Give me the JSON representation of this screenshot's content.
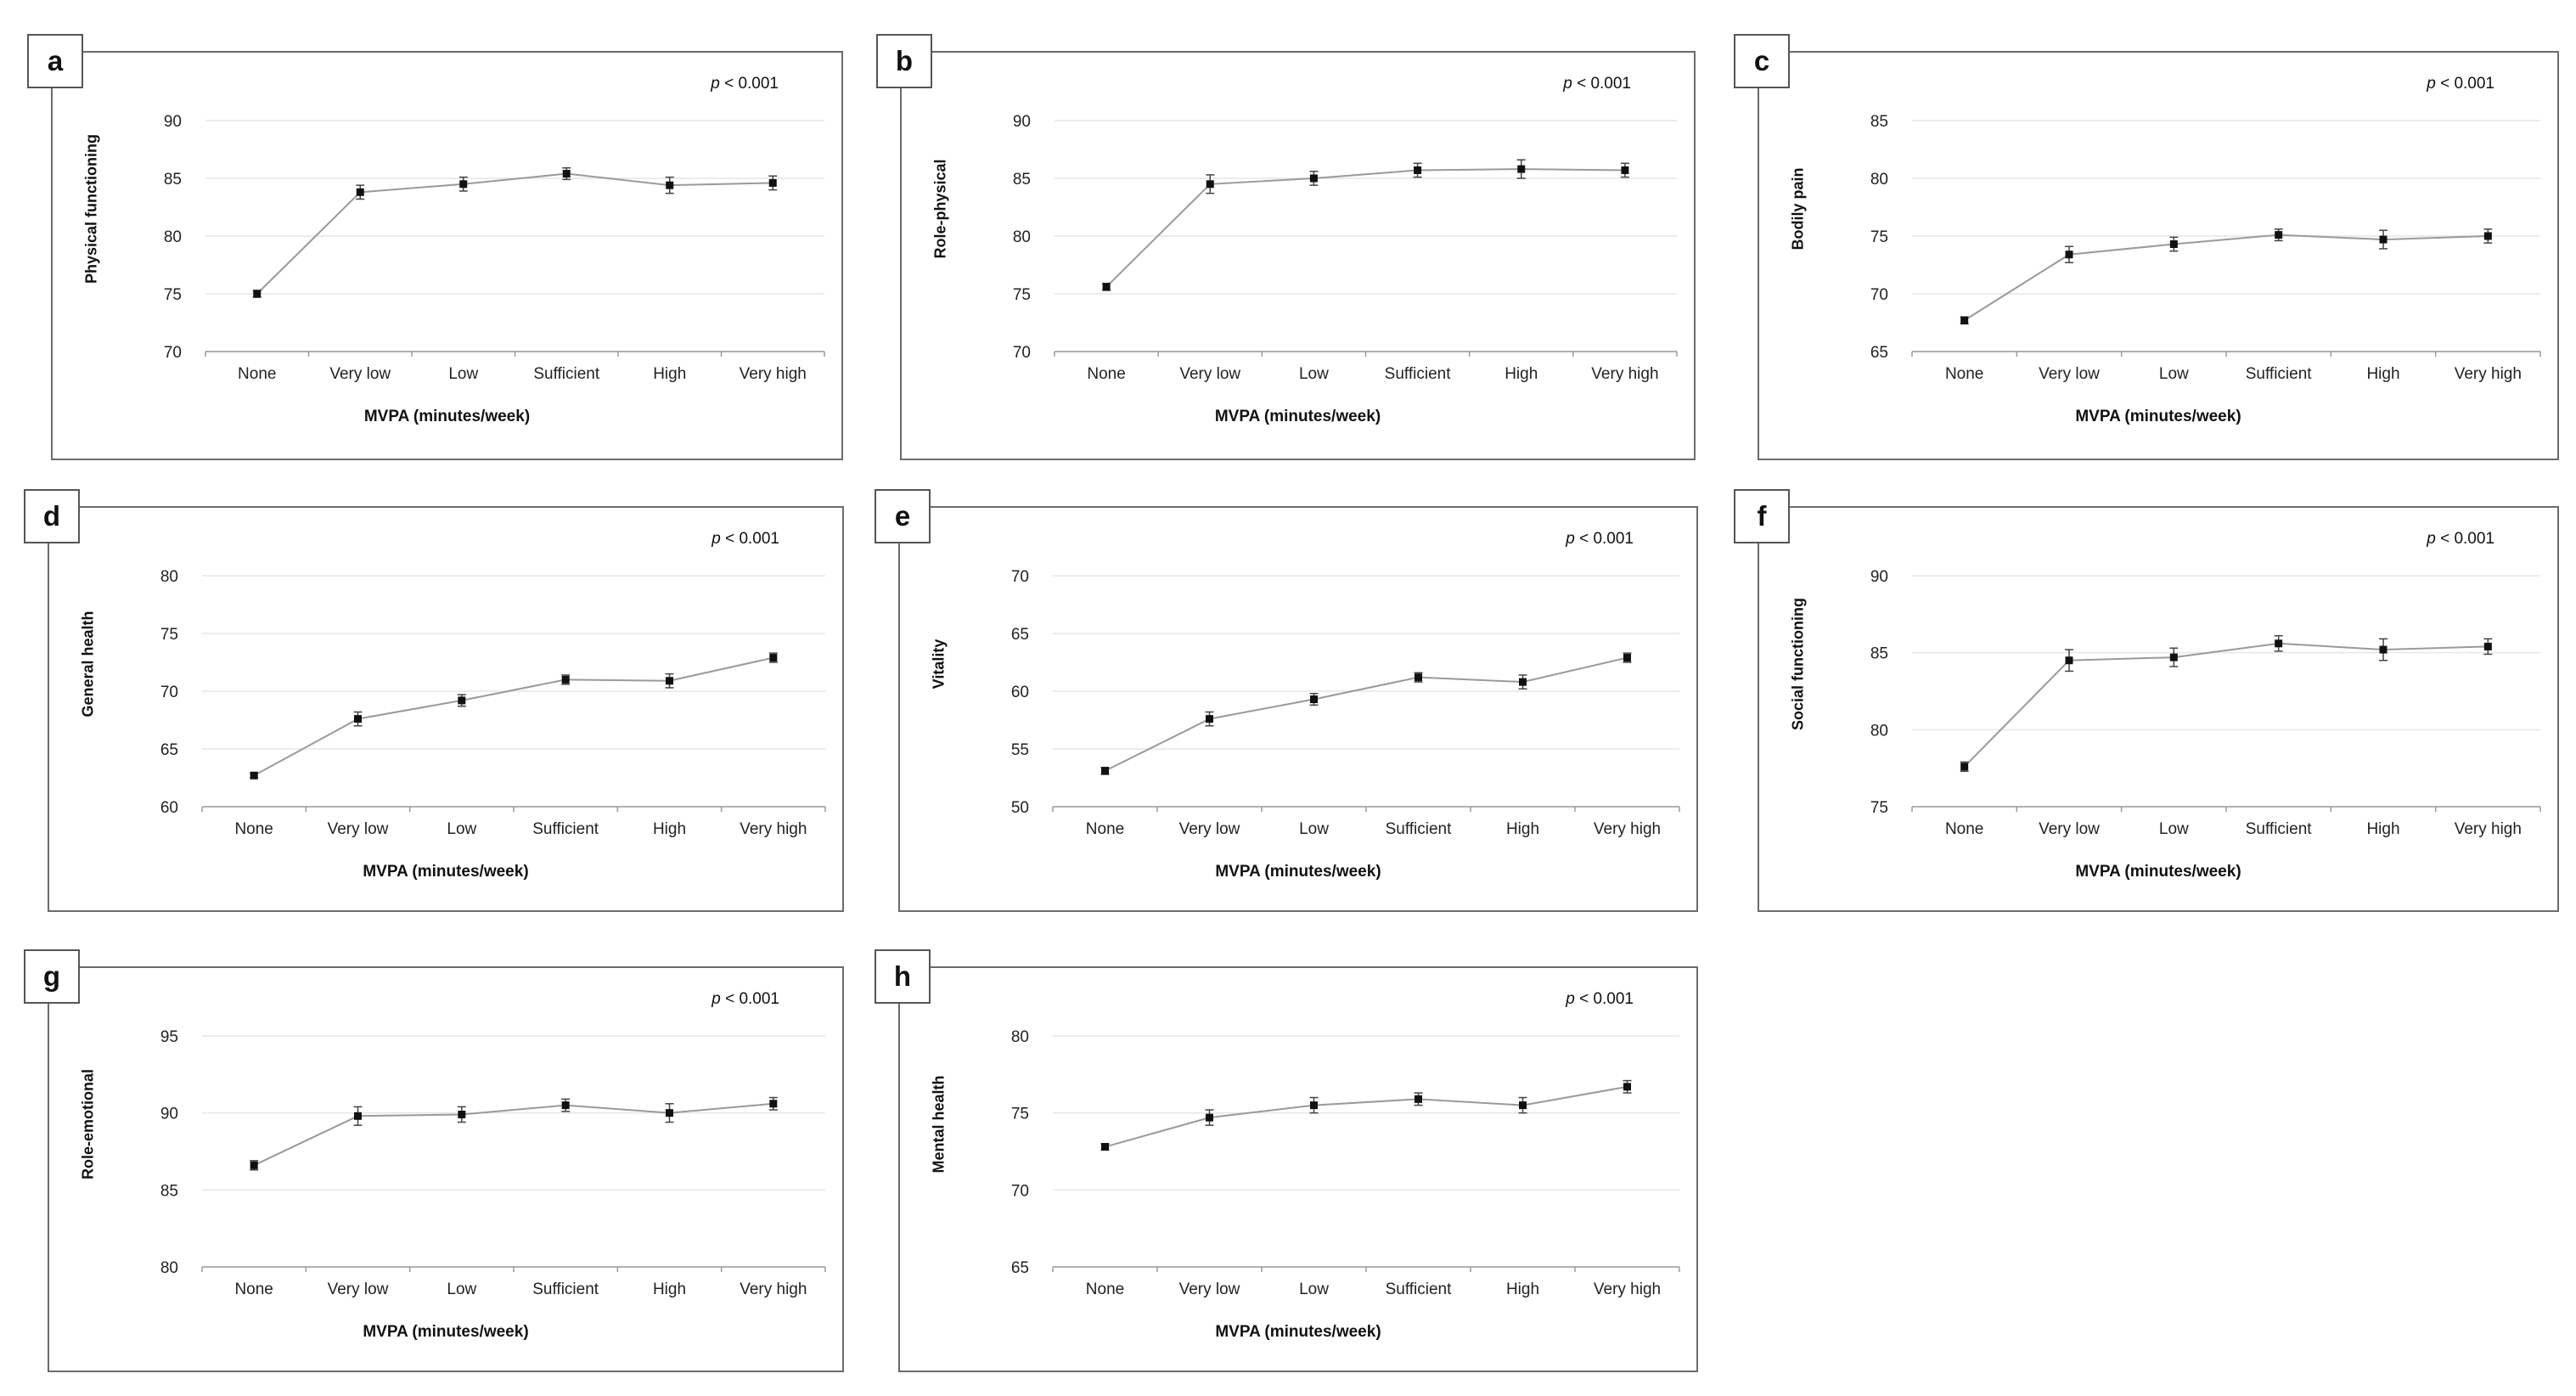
{
  "colors": {
    "line": "#9a9a9a",
    "marker": "#111111",
    "grid": "#e6e6e6",
    "axis": "#9a9a9a"
  },
  "chart_data": [
    {
      "panel": "a",
      "type": "line",
      "title": "",
      "pvalue": "p < 0.001",
      "pvalue_italic": "p",
      "pvalue_rest": " < 0.001",
      "xlabel": "MVPA (minutes/week)",
      "ylabel": "Physical functioning",
      "categories": [
        "None",
        "Very low",
        "Low",
        "Sufficient",
        "High",
        "Very high"
      ],
      "values": [
        75.0,
        83.8,
        84.5,
        85.4,
        84.4,
        84.6
      ],
      "errors": [
        0.3,
        0.6,
        0.6,
        0.5,
        0.7,
        0.6
      ],
      "ylim": [
        70,
        90
      ],
      "yticks": [
        70,
        75,
        80,
        85,
        90
      ]
    },
    {
      "panel": "b",
      "type": "line",
      "title": "",
      "pvalue": "p < 0.001",
      "pvalue_italic": "p",
      "pvalue_rest": " < 0.001",
      "xlabel": "MVPA (minutes/week)",
      "ylabel": "Role-physical",
      "categories": [
        "None",
        "Very low",
        "Low",
        "Sufficient",
        "High",
        "Very high"
      ],
      "values": [
        75.6,
        84.5,
        85.0,
        85.7,
        85.8,
        85.7
      ],
      "errors": [
        0.3,
        0.8,
        0.6,
        0.6,
        0.8,
        0.6
      ],
      "ylim": [
        70,
        90
      ],
      "yticks": [
        70,
        75,
        80,
        85,
        90
      ]
    },
    {
      "panel": "c",
      "type": "line",
      "title": "",
      "pvalue": "p < 0.001",
      "pvalue_italic": "p",
      "pvalue_rest": " < 0.001",
      "xlabel": "MVPA (minutes/week)",
      "ylabel": "Bodily pain",
      "categories": [
        "None",
        "Very low",
        "Low",
        "Sufficient",
        "High",
        "Very high"
      ],
      "values": [
        67.7,
        73.4,
        74.3,
        75.1,
        74.7,
        75.0
      ],
      "errors": [
        0.3,
        0.7,
        0.6,
        0.5,
        0.8,
        0.6
      ],
      "ylim": [
        65,
        85
      ],
      "yticks": [
        65,
        70,
        75,
        80,
        85
      ]
    },
    {
      "panel": "d",
      "type": "line",
      "title": "",
      "pvalue": "p < 0.001",
      "pvalue_italic": "p",
      "pvalue_rest": " < 0.001",
      "xlabel": "MVPA (minutes/week)",
      "ylabel": "General health",
      "categories": [
        "None",
        "Very low",
        "Low",
        "Sufficient",
        "High",
        "Very high"
      ],
      "values": [
        62.7,
        67.6,
        69.2,
        71.0,
        70.9,
        72.9
      ],
      "errors": [
        0.2,
        0.6,
        0.5,
        0.4,
        0.6,
        0.4
      ],
      "ylim": [
        60,
        80
      ],
      "yticks": [
        60,
        65,
        70,
        75,
        80
      ]
    },
    {
      "panel": "e",
      "type": "line",
      "title": "",
      "pvalue": "p < 0.001",
      "pvalue_italic": "p",
      "pvalue_rest": " < 0.001",
      "xlabel": "MVPA (minutes/week)",
      "ylabel": "Vitality",
      "categories": [
        "None",
        "Very low",
        "Low",
        "Sufficient",
        "High",
        "Very high"
      ],
      "values": [
        53.1,
        57.6,
        59.3,
        61.2,
        60.8,
        62.9
      ],
      "errors": [
        0.3,
        0.6,
        0.5,
        0.4,
        0.6,
        0.4
      ],
      "ylim": [
        50,
        70
      ],
      "yticks": [
        50,
        55,
        60,
        65,
        70
      ]
    },
    {
      "panel": "f",
      "type": "line",
      "title": "",
      "pvalue": "p < 0.001",
      "pvalue_italic": "p",
      "pvalue_rest": " < 0.001",
      "xlabel": "MVPA (minutes/week)",
      "ylabel": "Social functioning",
      "categories": [
        "None",
        "Very low",
        "Low",
        "Sufficient",
        "High",
        "Very high"
      ],
      "values": [
        77.6,
        84.5,
        84.7,
        85.6,
        85.2,
        85.4
      ],
      "errors": [
        0.3,
        0.7,
        0.6,
        0.5,
        0.7,
        0.5
      ],
      "ylim": [
        75,
        90
      ],
      "yticks": [
        75,
        80,
        85,
        90
      ]
    },
    {
      "panel": "g",
      "type": "line",
      "title": "",
      "pvalue": "p < 0.001",
      "pvalue_italic": "p",
      "pvalue_rest": " < 0.001",
      "xlabel": "MVPA (minutes/week)",
      "ylabel": "Role-emotional",
      "categories": [
        "None",
        "Very low",
        "Low",
        "Sufficient",
        "High",
        "Very high"
      ],
      "values": [
        86.6,
        89.8,
        89.9,
        90.5,
        90.0,
        90.6
      ],
      "errors": [
        0.3,
        0.6,
        0.5,
        0.4,
        0.6,
        0.4
      ],
      "ylim": [
        80,
        95
      ],
      "yticks": [
        80,
        85,
        90,
        95
      ]
    },
    {
      "panel": "h",
      "type": "line",
      "title": "",
      "pvalue": "p < 0.001",
      "pvalue_italic": "p",
      "pvalue_rest": " < 0.001",
      "xlabel": "MVPA (minutes/week)",
      "ylabel": "Mental health",
      "categories": [
        "None",
        "Very low",
        "Low",
        "Sufficient",
        "High",
        "Very high"
      ],
      "values": [
        72.8,
        74.7,
        75.5,
        75.9,
        75.5,
        76.7
      ],
      "errors": [
        0.2,
        0.5,
        0.5,
        0.4,
        0.5,
        0.4
      ],
      "ylim": [
        65,
        80
      ],
      "yticks": [
        65,
        70,
        75,
        80
      ]
    }
  ]
}
